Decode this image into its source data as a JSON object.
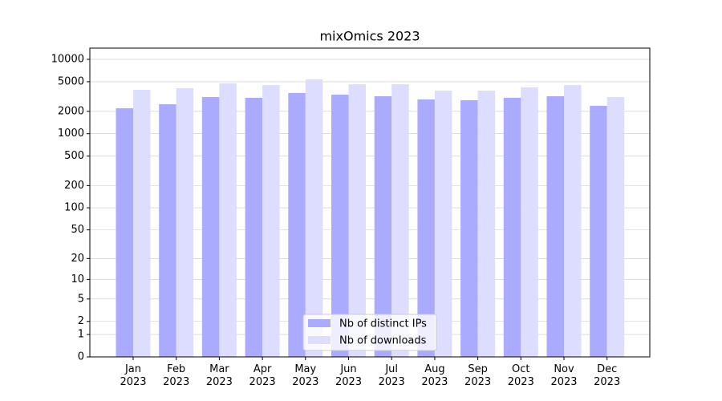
{
  "chart_data": {
    "type": "bar",
    "title": "mixOmics 2023",
    "scale": "log1p",
    "grid": true,
    "categories": [
      "Jan\n2023",
      "Feb\n2023",
      "Mar\n2023",
      "Apr\n2023",
      "May\n2023",
      "Jun\n2023",
      "Jul\n2023",
      "Aug\n2023",
      "Sep\n2023",
      "Oct\n2023",
      "Nov\n2023",
      "Dec\n2023"
    ],
    "series": [
      {
        "name": "Nb of distinct IPs",
        "color": "#aaaaff",
        "values": [
          2200,
          2490,
          3110,
          3040,
          3530,
          3350,
          3190,
          2890,
          2820,
          3040,
          3190,
          2370
        ]
      },
      {
        "name": "Nb of downloads",
        "color": "#ddddff",
        "values": [
          3890,
          4090,
          4750,
          4520,
          5370,
          4630,
          4630,
          3800,
          3800,
          4200,
          4520,
          3110
        ]
      }
    ],
    "ylim": [
      0,
      14150
    ],
    "yticks": [
      0,
      1,
      2,
      5,
      10,
      20,
      50,
      100,
      200,
      500,
      1000,
      2000,
      5000,
      10000
    ],
    "legend": "lower center"
  }
}
